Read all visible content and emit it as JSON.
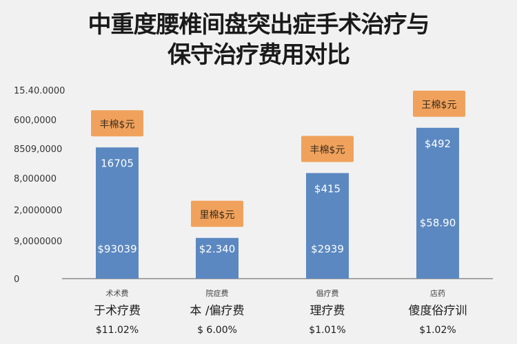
{
  "chart_data": {
    "type": "bar",
    "title_lines": [
      "中重度腰椎间盘突出症手术治疗与",
      "保守治疗费用对比"
    ],
    "y_tick_labels": [
      "15.40.0000",
      "600,0000",
      "8509,0000",
      "8,000000",
      "2,0000000",
      "9,0000000",
      "0"
    ],
    "categories_small": [
      "术术费",
      "院症费",
      "倡疗费",
      "店药"
    ],
    "categories": [
      "于术疗费",
      "本 /偏疗费",
      "理疗费",
      "傻度俗疗训"
    ],
    "percent_labels": [
      "$11.02%",
      "$ 6.00%",
      "$1.01%",
      "$1.02%"
    ],
    "callouts": [
      "丰棉$元",
      "里棉$元",
      "丰棉$元",
      "王棉$元"
    ],
    "bar_top_labels": [
      "16705",
      "",
      "$415",
      "$492"
    ],
    "bar_mid_labels": [
      "",
      "",
      "",
      "$58.90"
    ],
    "bar_bottom_labels": [
      "$93039",
      "$2.340",
      "$2939",
      ""
    ],
    "values": [
      4.35,
      1.35,
      3.5,
      5.0
    ],
    "ylim": [
      0,
      6.5
    ],
    "grid": false,
    "colors": {
      "bar": "#5b88c0",
      "callout_fill": "#f0a25c",
      "callout_text": "#3a2a1a",
      "bar_text": "#ffffff",
      "axis": "#8a8a8a",
      "tick_text": "#333333"
    }
  }
}
